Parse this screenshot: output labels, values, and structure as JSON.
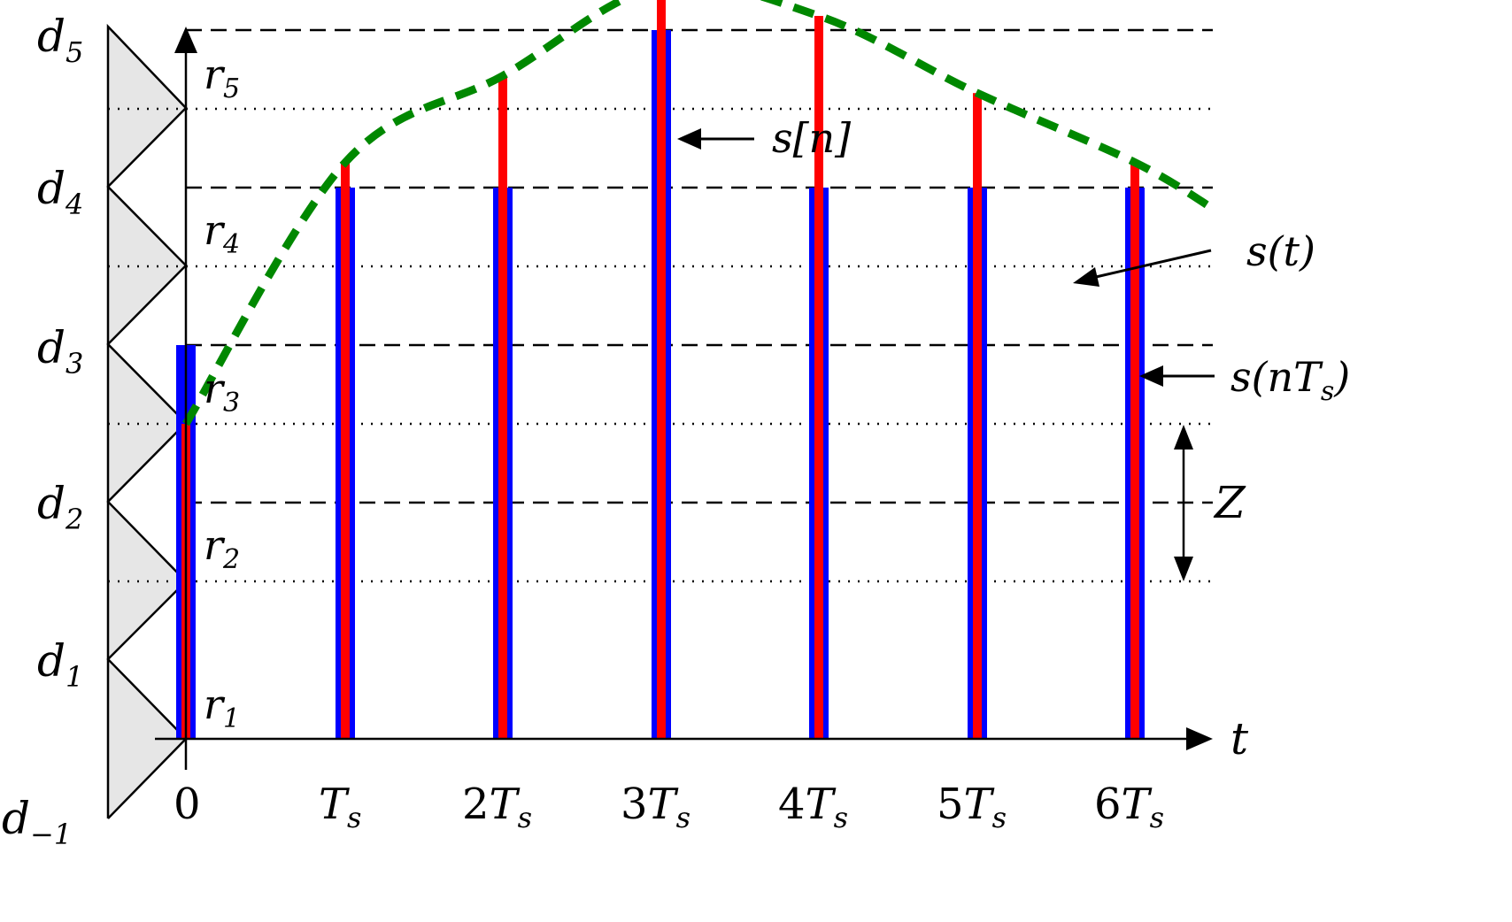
{
  "diagram": {
    "decision_labels": [
      {
        "base": "d",
        "sub": "5"
      },
      {
        "base": "d",
        "sub": "4"
      },
      {
        "base": "d",
        "sub": "3"
      },
      {
        "base": "d",
        "sub": "2"
      },
      {
        "base": "d",
        "sub": "1"
      },
      {
        "base": "d",
        "sub": "−1"
      }
    ],
    "reconstruction_labels": [
      {
        "base": "r",
        "sub": "5"
      },
      {
        "base": "r",
        "sub": "4"
      },
      {
        "base": "r",
        "sub": "3"
      },
      {
        "base": "r",
        "sub": "2"
      },
      {
        "base": "r",
        "sub": "1"
      }
    ],
    "time_ticks": [
      "0",
      "T",
      "2T",
      "3T",
      "4T",
      "5T",
      "6T"
    ],
    "time_tick_sub": "s",
    "t_axis_label": "t",
    "legend": {
      "sn": {
        "text": "s[n]",
        "color": "#0000ff"
      },
      "st": {
        "text": "s(t)",
        "color": "#008800"
      },
      "snTs": {
        "text": "s(nT",
        "sub": "s",
        "close": ")",
        "color": "#ff0000"
      }
    },
    "step_label": "Z",
    "colors": {
      "quantized_bar": "#0000ff",
      "sample_bar": "#ff0000",
      "signal_curve": "#008800",
      "triangle_fill": "#e6e6e6"
    }
  },
  "chart_data": {
    "type": "bar",
    "x_categories": [
      "0",
      "Ts",
      "2Ts",
      "3Ts",
      "4Ts",
      "5Ts",
      "6Ts"
    ],
    "decision_levels": [
      "d-1",
      "d1",
      "d2",
      "d3",
      "d4",
      "d5"
    ],
    "reconstruction_levels": [
      "r1",
      "r2",
      "r3",
      "r4",
      "r5"
    ],
    "series": [
      {
        "name": "s[n]",
        "values": [
          3,
          4,
          4,
          5,
          4,
          4,
          4
        ]
      },
      {
        "name": "s(nTs)",
        "values": [
          2.0,
          3.66,
          4.21,
          4.78,
          4.59,
          4.1,
          3.66
        ]
      }
    ],
    "units_note": "values on the level axis: d_k at k (d-1 at 0); r_k at k-0.5"
  }
}
